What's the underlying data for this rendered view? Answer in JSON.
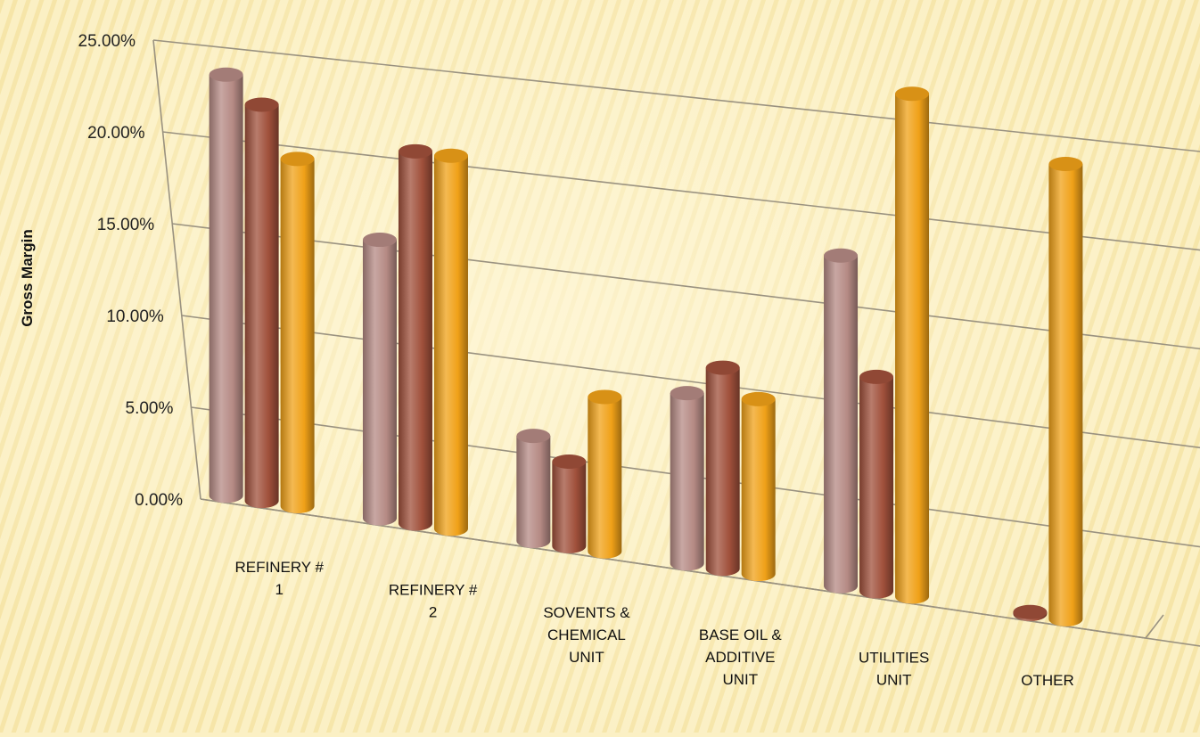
{
  "chart_data": {
    "type": "bar",
    "title": "",
    "xlabel": "",
    "ylabel": "Gross Margin",
    "ylim": [
      0,
      25
    ],
    "yticks": [
      "0.00%",
      "5.00%",
      "10.00%",
      "15.00%",
      "20.00%",
      "25.00%"
    ],
    "categories": [
      [
        "REFINERY #",
        "1"
      ],
      [
        "REFINERY #",
        "2"
      ],
      [
        "SOVENTS &",
        "CHEMICAL",
        "UNIT"
      ],
      [
        "BASE OIL &",
        "ADDITIVE",
        "UNIT"
      ],
      [
        "UTILITIES",
        "UNIT"
      ],
      [
        "OTHER"
      ]
    ],
    "series": [
      {
        "color": "#b58a84",
        "values": [
          22.9,
          15.0,
          5.6,
          9.0,
          17.3,
          null
        ]
      },
      {
        "color": "#a0503b",
        "values": [
          21.5,
          20.0,
          4.5,
          10.6,
          11.2,
          0.1
        ]
      },
      {
        "color": "#f0a118",
        "values": [
          18.8,
          20.0,
          8.2,
          9.2,
          26.2,
          23.5
        ]
      }
    ],
    "legend": "none",
    "grid": true,
    "style": "3d-cylinder"
  }
}
